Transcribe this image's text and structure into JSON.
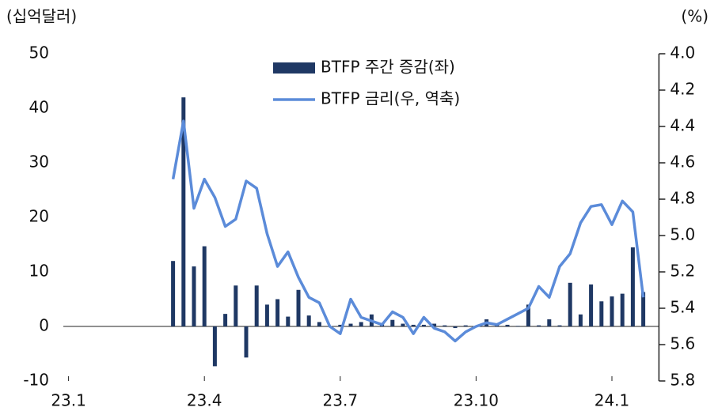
{
  "chart_data": {
    "type": "bar_line",
    "y_axis_label": "(십억달러)",
    "y2_axis_label": "(%)",
    "categories": [
      "23.1",
      null,
      null,
      null,
      null,
      null,
      null,
      null,
      null,
      null,
      null,
      null,
      null,
      "23.4",
      null,
      null,
      null,
      null,
      null,
      null,
      null,
      null,
      null,
      null,
      null,
      null,
      "23.7",
      null,
      null,
      null,
      null,
      null,
      null,
      null,
      null,
      null,
      null,
      null,
      null,
      "23.10",
      null,
      null,
      null,
      null,
      null,
      null,
      null,
      null,
      null,
      null,
      null,
      null,
      "24.1",
      null,
      null,
      null,
      null
    ],
    "series": [
      {
        "name": "BTFP 주간 증감(좌)",
        "type": "bar",
        "color": "#1f3864",
        "values": [
          null,
          null,
          null,
          null,
          null,
          null,
          null,
          null,
          null,
          null,
          12,
          42,
          11,
          14.7,
          -7.3,
          2.3,
          7.5,
          -5.7,
          7.5,
          4,
          5,
          1.8,
          6.7,
          2,
          0.8,
          0,
          0.3,
          0.5,
          0.8,
          2.2,
          0.5,
          1.2,
          0.5,
          0.3,
          0.3,
          0.5,
          0.2,
          -0.3,
          0.2,
          0.1,
          1.3,
          0.4,
          0.3,
          0.1,
          4,
          0.2,
          1.3,
          0.2,
          8,
          2.2,
          7.7,
          4.6,
          5.5,
          6,
          14.5,
          6.3,
          null
        ]
      },
      {
        "name": "BTFP 금리(우, 역축)",
        "type": "line",
        "axis": "y2",
        "color": "#5b8bd9",
        "values": [
          null,
          null,
          null,
          null,
          null,
          null,
          null,
          null,
          null,
          null,
          4.69,
          4.37,
          4.85,
          4.69,
          4.79,
          4.95,
          4.91,
          4.7,
          4.74,
          4.99,
          5.17,
          5.09,
          5.23,
          5.34,
          5.37,
          5.5,
          5.54,
          5.35,
          5.45,
          5.47,
          5.49,
          5.42,
          5.45,
          5.54,
          5.45,
          5.51,
          5.53,
          5.58,
          5.53,
          5.5,
          5.48,
          5.49,
          5.46,
          5.43,
          5.4,
          5.28,
          5.34,
          5.17,
          5.1,
          4.93,
          4.84,
          4.83,
          4.94,
          4.81,
          4.87,
          5.34,
          null
        ]
      }
    ],
    "ylim": [
      -10,
      50
    ],
    "yticks": [
      -10,
      0,
      10,
      20,
      30,
      40,
      50
    ],
    "y2lim": [
      4,
      5.8
    ],
    "y2_inverted": true,
    "y2ticks": [
      {
        "value": 4,
        "label": "4.0"
      },
      4.2,
      4.4,
      4.6,
      4.8,
      {
        "value": 5,
        "label": "5.0"
      },
      5.2,
      5.4,
      5.6,
      5.8
    ],
    "legend": "top-center"
  }
}
